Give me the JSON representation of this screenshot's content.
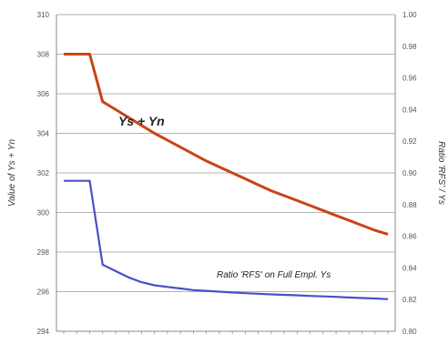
{
  "chart_data": {
    "type": "line",
    "x_count": 26,
    "grid": true,
    "y_left": {
      "label": "Value of Ys + Yn",
      "ticks": [
        "310",
        "308",
        "306",
        "304",
        "302",
        "300",
        "298",
        "296",
        "294"
      ],
      "min": 294,
      "max": 310
    },
    "y_right": {
      "label": "Ratio 'RFS' / Ys",
      "ticks": [
        "1.00",
        "0.98",
        "0.96",
        "0.94",
        "0.92",
        "0.90",
        "0.88",
        "0.86",
        "0.84",
        "0.82",
        "0.80"
      ],
      "min": 0.8,
      "max": 1.0
    },
    "series": [
      {
        "name": "Ys + Yn",
        "axis": "left",
        "color": "#c84418",
        "values": [
          308.0,
          308.0,
          308.0,
          305.6,
          305.2,
          304.8,
          304.4,
          304.0,
          303.65,
          303.3,
          302.95,
          302.6,
          302.3,
          302.0,
          301.7,
          301.4,
          301.1,
          300.85,
          300.6,
          300.35,
          300.1,
          299.85,
          299.6,
          299.35,
          299.1,
          298.9
        ]
      },
      {
        "name": "Ratio 'RFS' on Full Empl. Ys",
        "axis": "right",
        "color": "#4b4fc7",
        "values": [
          0.895,
          0.895,
          0.895,
          0.842,
          0.838,
          0.834,
          0.831,
          0.829,
          0.828,
          0.827,
          0.826,
          0.8255,
          0.825,
          0.8245,
          0.824,
          0.8237,
          0.8233,
          0.823,
          0.8227,
          0.8223,
          0.822,
          0.8217,
          0.8213,
          0.821,
          0.8207,
          0.8203
        ]
      }
    ],
    "annotations": {
      "main": "Ys + Yn",
      "sub": "Ratio 'RFS' on Full Empl. Ys"
    }
  }
}
